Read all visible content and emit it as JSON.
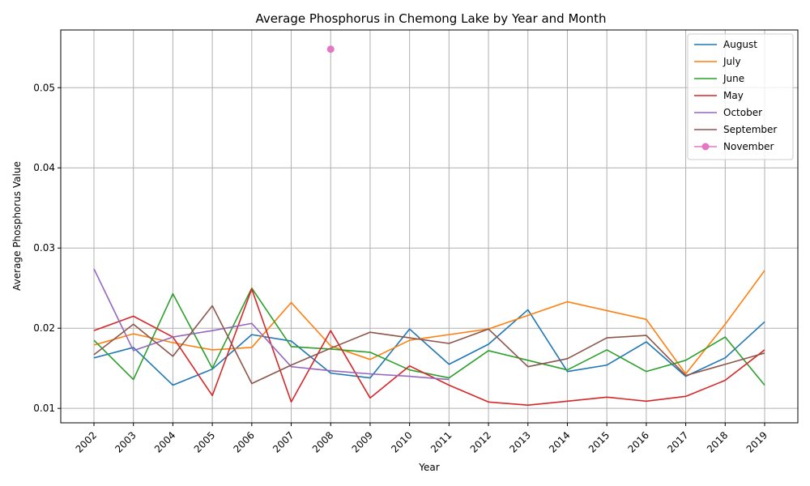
{
  "chart_data": {
    "type": "line",
    "title": "Average Phosphorus in Chemong Lake by Year and Month",
    "xlabel": "Year",
    "ylabel": "Average Phosphorus Value",
    "categories": [
      "2002",
      "2003",
      "2004",
      "2005",
      "2006",
      "2007",
      "2008",
      "2009",
      "2010",
      "2011",
      "2012",
      "2013",
      "2014",
      "2015",
      "2016",
      "2017",
      "2018",
      "2019"
    ],
    "ylim": [
      0.0082,
      0.0572
    ],
    "yticks": [
      "0.01",
      "0.02",
      "0.03",
      "0.04",
      "0.05"
    ],
    "grid": true,
    "legend_position": "top-right",
    "series": [
      {
        "name": "August",
        "color": "#1f77b4",
        "marker": "none",
        "values": [
          0.0163,
          0.0176,
          0.0129,
          0.0149,
          0.0192,
          0.0184,
          0.0144,
          0.0138,
          0.0199,
          0.0155,
          0.018,
          0.0223,
          0.0146,
          0.0154,
          0.0183,
          0.014,
          0.0163,
          0.0208
        ]
      },
      {
        "name": "July",
        "color": "#ff7f0e",
        "marker": "none",
        "values": [
          0.0179,
          0.0193,
          0.0182,
          0.0173,
          0.0176,
          0.0232,
          0.0178,
          0.0161,
          0.0185,
          0.0192,
          0.0199,
          0.0216,
          0.0233,
          0.0222,
          0.0211,
          0.0143,
          0.0205,
          0.0272
        ]
      },
      {
        "name": "June",
        "color": "#2ca02c",
        "marker": "none",
        "values": [
          0.0185,
          0.0136,
          0.0243,
          0.015,
          0.025,
          0.0177,
          0.0174,
          0.017,
          0.0148,
          0.0138,
          0.0172,
          0.016,
          0.0148,
          0.0173,
          0.0146,
          0.016,
          0.0189,
          0.0129
        ]
      },
      {
        "name": "May",
        "color": "#d62728",
        "marker": "none",
        "values": [
          0.0197,
          0.0215,
          0.0189,
          0.0116,
          0.0249,
          0.0108,
          0.0197,
          0.0113,
          0.0153,
          0.0129,
          0.0108,
          0.0104,
          0.0109,
          0.0114,
          0.0109,
          0.0115,
          0.0135,
          0.0173
        ]
      },
      {
        "name": "October",
        "color": "#9467bd",
        "marker": "none",
        "values": [
          0.0274,
          0.0172,
          0.0189,
          0.0197,
          0.0206,
          0.0152,
          0.0147,
          0.0143,
          0.014,
          0.0136,
          null,
          null,
          null,
          null,
          null,
          null,
          null,
          null
        ]
      },
      {
        "name": "September",
        "color": "#8c564b",
        "marker": "none",
        "values": [
          0.0167,
          0.0205,
          0.0165,
          0.0228,
          0.0131,
          0.0154,
          0.0175,
          0.0195,
          0.0188,
          0.0181,
          0.0199,
          0.0152,
          0.0162,
          0.0188,
          0.0191,
          0.0141,
          0.0155,
          0.0169
        ]
      },
      {
        "name": "November",
        "color": "#e377c2",
        "marker": "circle",
        "values": [
          null,
          null,
          null,
          null,
          null,
          null,
          0.0548,
          null,
          null,
          null,
          null,
          null,
          null,
          null,
          null,
          null,
          null,
          null
        ]
      }
    ]
  }
}
